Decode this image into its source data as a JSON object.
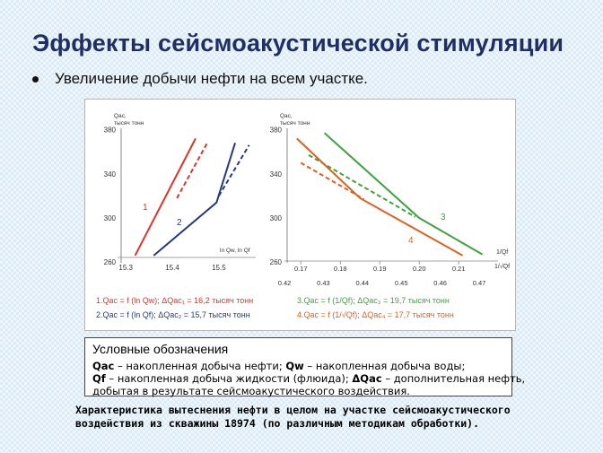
{
  "slide": {
    "title": "Эффекты сейсмоакустической стимуляции",
    "bullet": "Увеличение добычи нефти на всем участке."
  },
  "chart_data": [
    {
      "type": "line",
      "ylabel": "Qac, тысяч тонн",
      "xlabel": "ln Qw, ln Qf",
      "ylim": [
        260,
        380
      ],
      "yticks": [
        260,
        300,
        340,
        380
      ],
      "xlim": [
        15.29,
        15.56
      ],
      "xticks": [
        15.3,
        15.4,
        15.5
      ],
      "xticklabels": [
        "15.3",
        "15.4",
        "15.5"
      ],
      "series": [
        {
          "label": "1",
          "color": "#e0332a",
          "style": "solid",
          "points": [
            [
              15.32,
              266
            ],
            [
              15.45,
              372
            ]
          ]
        },
        {
          "label": "",
          "color": "#e0332a",
          "style": "dashed",
          "points": [
            [
              15.41,
              318
            ],
            [
              15.475,
              368
            ]
          ]
        },
        {
          "label": "2",
          "color": "#253a7e",
          "style": "solid",
          "points": [
            [
              15.36,
              266
            ],
            [
              15.495,
              314
            ],
            [
              15.535,
              368
            ]
          ]
        },
        {
          "label": "",
          "color": "#253a7e",
          "style": "dashed",
          "points": [
            [
              15.5,
              320
            ],
            [
              15.565,
              366
            ]
          ]
        }
      ],
      "annotations": [
        "1.Qac = f (ln Qw); ΔQac₁ = 16,2 тысяч тонн",
        "2.Qac = f (ln Qf); ΔQac₂ = 15,7 тысяч тонн"
      ],
      "annotation_colors": [
        "#e0332a",
        "#253a7e"
      ]
    },
    {
      "type": "line",
      "ylabel": "Qac, тысяч тонн",
      "xlabel": "1/Qf, 1/√Qf",
      "ylim": [
        260,
        380
      ],
      "yticks": [
        260,
        300,
        340,
        380
      ],
      "xticks_top": [
        0.17,
        0.18,
        0.19,
        0.2,
        0.21
      ],
      "xticks_top_labels": [
        "0.17",
        "0.18",
        "0.19",
        "0.20",
        "0.21"
      ],
      "xticks_bottom": [
        0.42,
        0.43,
        0.44,
        0.45,
        0.46,
        0.47
      ],
      "xticks_bottom_labels": [
        "0.42",
        "0.43",
        "0.44",
        "0.45",
        "0.46",
        "0.47"
      ],
      "axis_label_top": "1/Qf",
      "axis_label_bottom": "1/√Qf",
      "series": [
        {
          "label": "3",
          "color": "#3fa33f",
          "style": "solid",
          "points": [
            [
              0.176,
              377
            ],
            [
              0.2,
              300
            ],
            [
              0.216,
              267
            ]
          ]
        },
        {
          "label": "",
          "color": "#3fa33f",
          "style": "dashed",
          "points": [
            [
              0.172,
              357
            ],
            [
              0.199,
              301
            ]
          ]
        },
        {
          "label": "4",
          "color": "#e0601e",
          "style": "solid",
          "points": [
            [
              0.169,
              372
            ],
            [
              0.185,
              318
            ],
            [
              0.211,
              266
            ]
          ]
        },
        {
          "label": "",
          "color": "#e0601e",
          "style": "dashed",
          "points": [
            [
              0.17,
              350
            ],
            [
              0.186,
              317
            ]
          ]
        }
      ],
      "annotations": [
        "3.Qac = f (1/Qf); ΔQac₃ = 19,7 тысяч тонн",
        "4.Qac = f (1/√Qf); ΔQac₄ = 17,7 тысяч тонн"
      ],
      "annotation_colors": [
        "#3fa33f",
        "#e0601e"
      ]
    }
  ],
  "legend": {
    "title": "Условные обозначения",
    "line1_term_a": "Qac",
    "line1_text_a": " – накопленная добыча нефти; ",
    "line1_term_b": "Qw",
    "line1_text_b": " – накопленная добыча воды;",
    "line2_term_a": "Qf",
    "line2_text_a": " – накопленная добыча жидкости (флюида); ",
    "line2_term_b": "ΔQac",
    "line2_text_b": " – дополнительная нефть,",
    "line3": "добытая в результате сейсмоакустического воздействия."
  },
  "caption": {
    "line1": "Характеристика вытеснения нефти в целом на участке сейсмоакустического",
    "line2": "воздействия из скважины 18974 (по различным методикам обработки)."
  }
}
